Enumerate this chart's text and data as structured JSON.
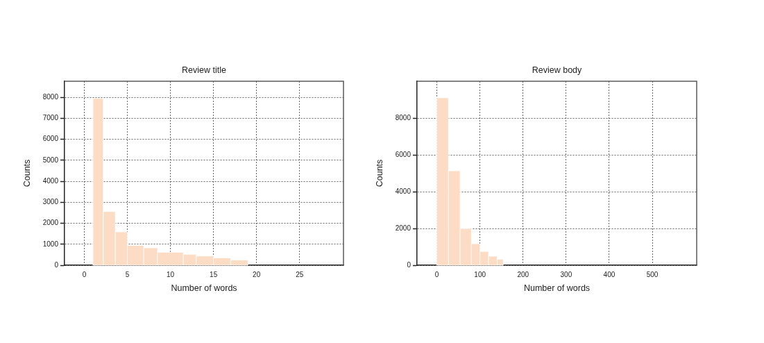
{
  "chart_data": [
    {
      "type": "histogram",
      "title": "Review title",
      "xlabel": "Number of words",
      "ylabel": "Counts",
      "bins": [
        1,
        2.2,
        3.6,
        5,
        6.9,
        8.5,
        11.5,
        13,
        15,
        17,
        19
      ],
      "values": [
        7950,
        2560,
        1590,
        950,
        830,
        620,
        520,
        440,
        350,
        250
      ],
      "color": "#fddcc6",
      "xlim": [
        -2.3,
        30.1
      ],
      "ylim": [
        0,
        8770
      ],
      "xticks": [
        0,
        5,
        10,
        15,
        20,
        25
      ],
      "yticks": [
        0,
        1000,
        2000,
        3000,
        4000,
        5000,
        6000,
        7000,
        8000
      ],
      "grid": true
    },
    {
      "type": "histogram",
      "title": "Review body",
      "xlabel": "Number of words",
      "ylabel": "Counts",
      "bins": [
        0,
        27,
        54,
        80,
        100,
        120,
        140,
        154
      ],
      "values": [
        9100,
        5130,
        1990,
        1170,
        750,
        490,
        330
      ],
      "color": "#fddcc6",
      "xlim": [
        -46,
        603
      ],
      "ylim": [
        0,
        10000
      ],
      "xticks": [
        0,
        100,
        200,
        300,
        400,
        500
      ],
      "yticks": [
        0,
        2000,
        4000,
        6000,
        8000
      ],
      "grid": true
    }
  ]
}
